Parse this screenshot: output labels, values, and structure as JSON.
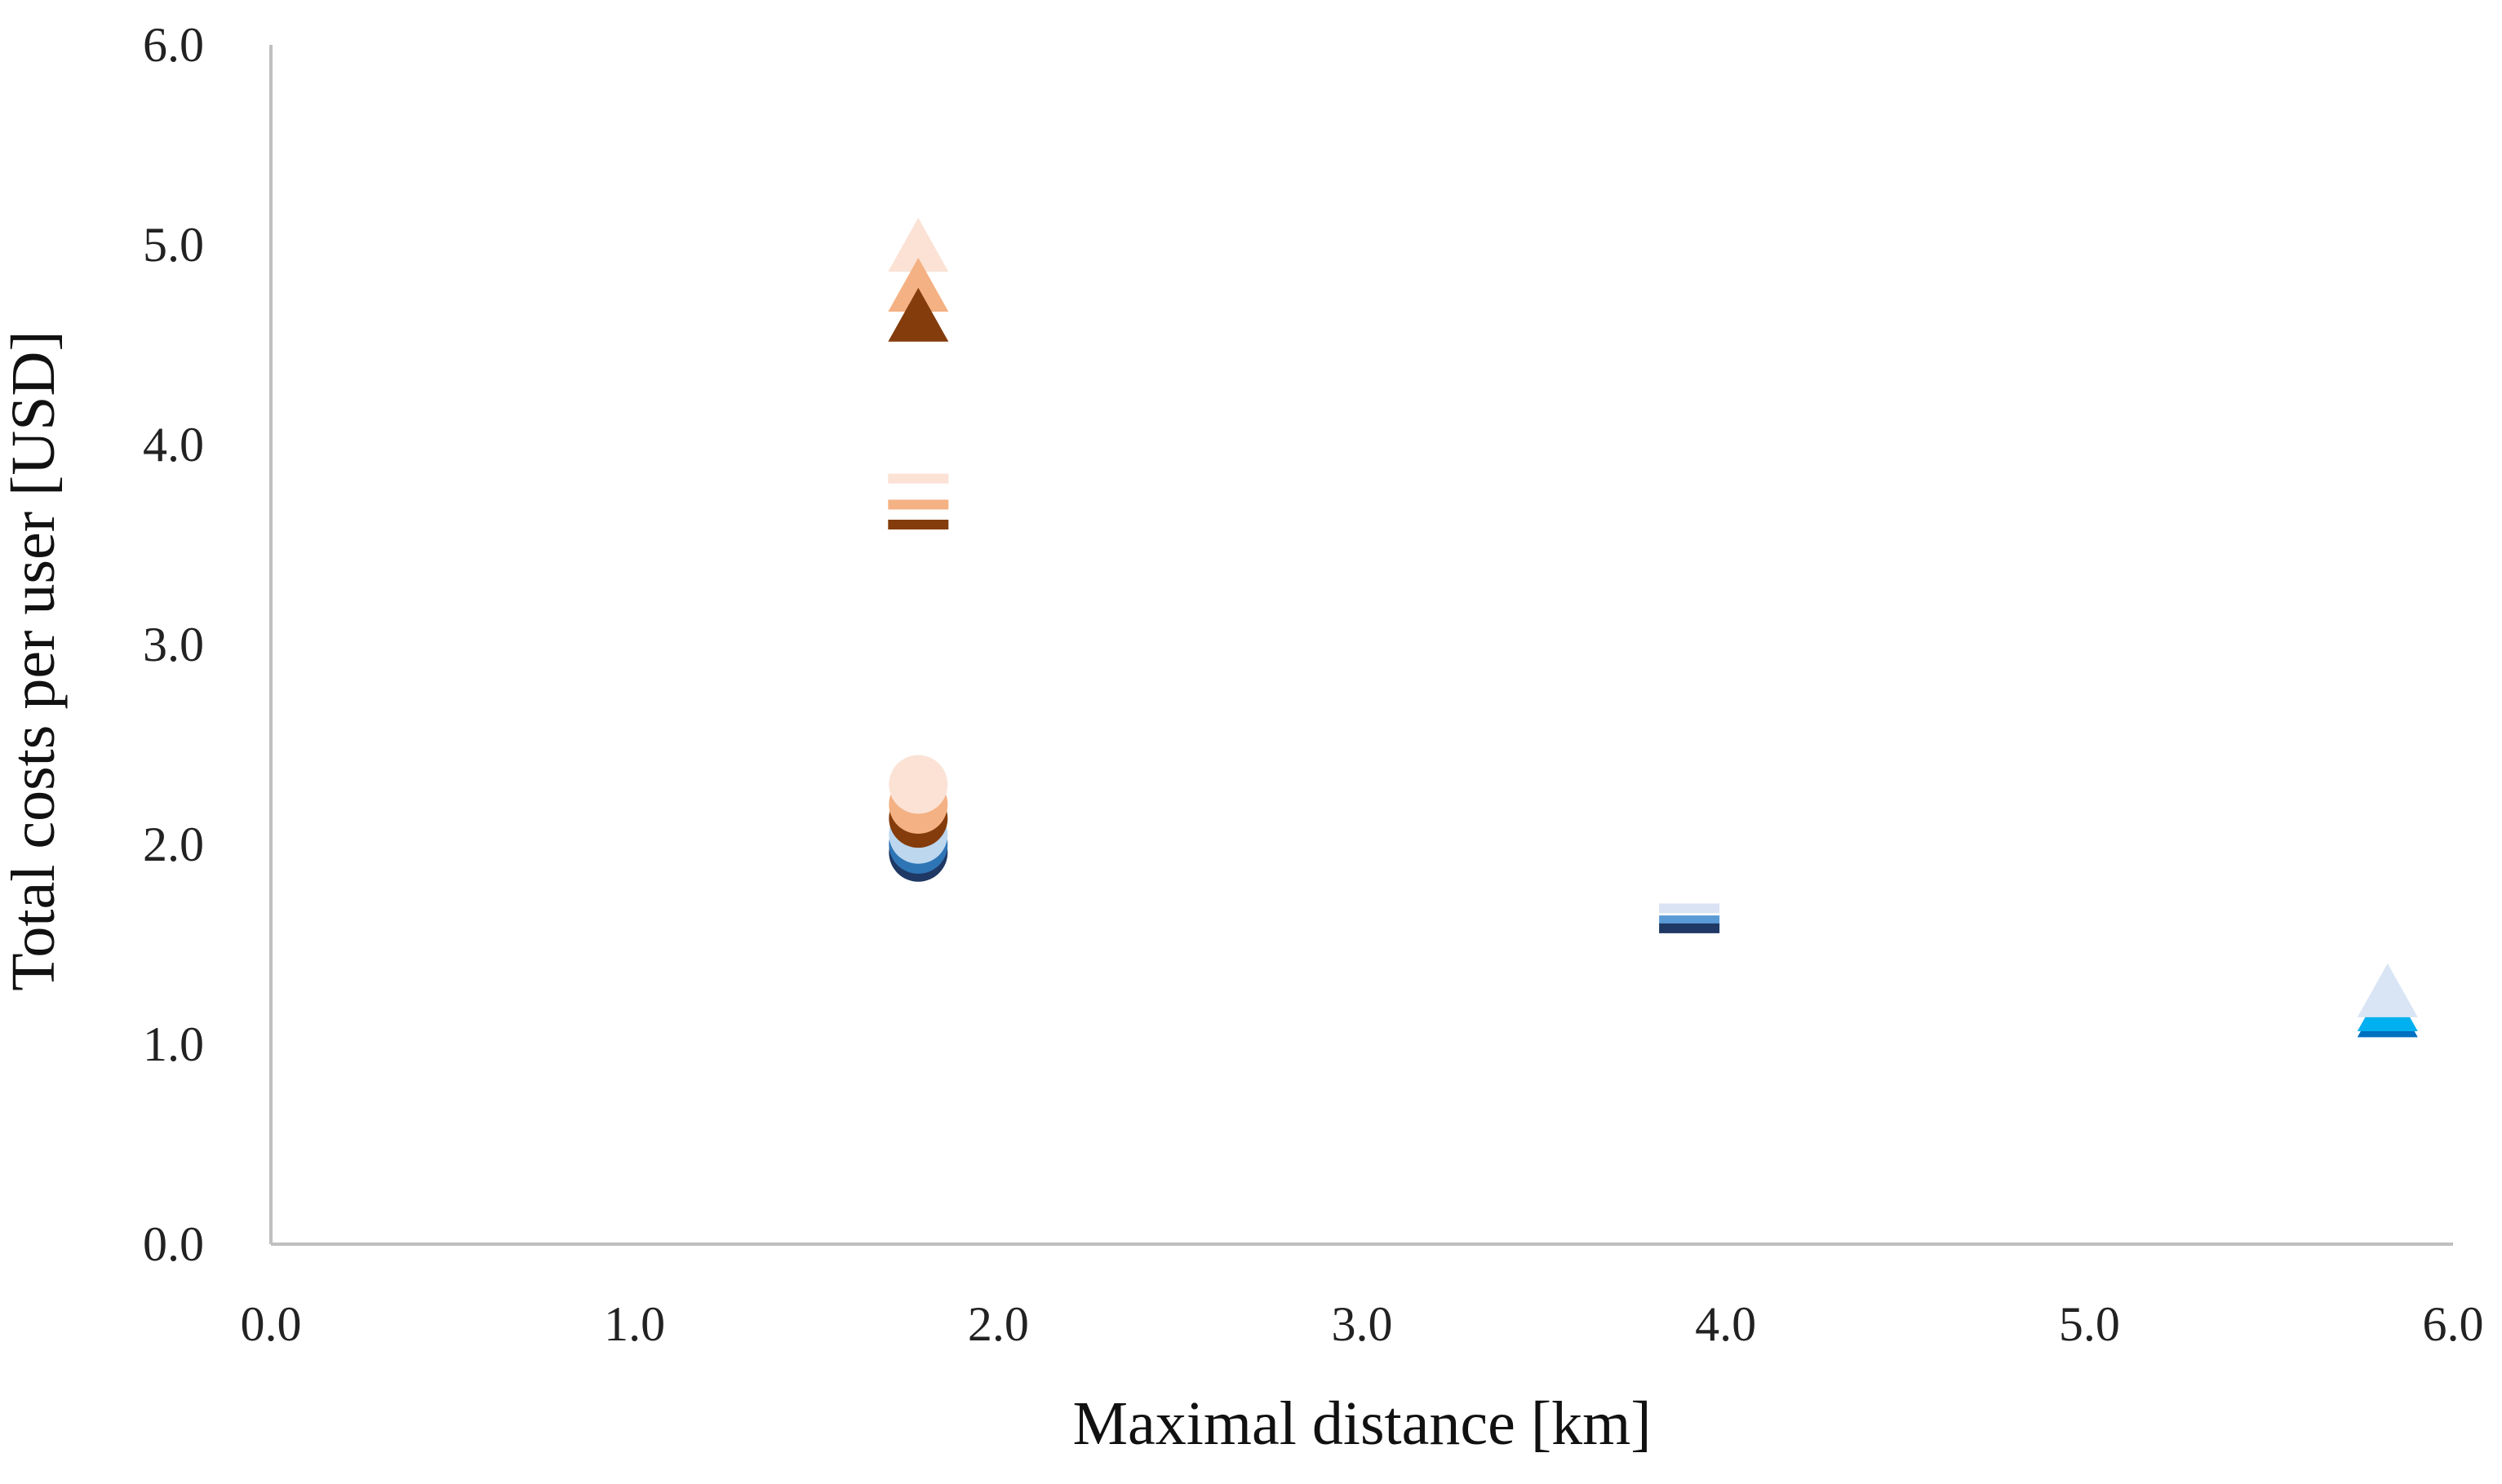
{
  "chart_data": {
    "type": "scatter",
    "title": "",
    "xlabel": "Maximal distance [km]",
    "ylabel": "Total costs per user [USD]",
    "xlim": [
      0,
      6
    ],
    "ylim": [
      0,
      6
    ],
    "xticks": [
      "0.0",
      "1.0",
      "2.0",
      "3.0",
      "4.0",
      "5.0",
      "6.0"
    ],
    "yticks": [
      "0.0",
      "1.0",
      "2.0",
      "3.0",
      "4.0",
      "5.0",
      "6.0"
    ],
    "grid": false,
    "legend": "none",
    "series": [
      {
        "marker": "triangle",
        "color": "#fbe2d5",
        "points": [
          {
            "x": 1.78,
            "y": 5.0
          }
        ]
      },
      {
        "marker": "triangle",
        "color": "#f4b183",
        "points": [
          {
            "x": 1.78,
            "y": 4.8
          }
        ]
      },
      {
        "marker": "triangle",
        "color": "#843c0c",
        "points": [
          {
            "x": 1.78,
            "y": 4.65
          }
        ]
      },
      {
        "marker": "dash",
        "color": "#fbe2d5",
        "points": [
          {
            "x": 1.78,
            "y": 3.83
          }
        ]
      },
      {
        "marker": "dash",
        "color": "#f4b183",
        "points": [
          {
            "x": 1.78,
            "y": 3.7
          }
        ]
      },
      {
        "marker": "dash",
        "color": "#843c0c",
        "points": [
          {
            "x": 1.78,
            "y": 3.6
          }
        ]
      },
      {
        "marker": "circle",
        "color": "#1f3864",
        "points": [
          {
            "x": 1.78,
            "y": 1.96
          }
        ]
      },
      {
        "marker": "circle",
        "color": "#2e75b6",
        "points": [
          {
            "x": 1.78,
            "y": 2.0
          }
        ]
      },
      {
        "marker": "circle",
        "color": "#bdd7ee",
        "points": [
          {
            "x": 1.78,
            "y": 2.05
          }
        ]
      },
      {
        "marker": "circle",
        "color": "#843c0c",
        "points": [
          {
            "x": 1.78,
            "y": 2.13
          }
        ]
      },
      {
        "marker": "circle",
        "color": "#f4b183",
        "points": [
          {
            "x": 1.78,
            "y": 2.2
          }
        ]
      },
      {
        "marker": "circle",
        "color": "#fbe2d5",
        "points": [
          {
            "x": 1.78,
            "y": 2.3
          }
        ]
      },
      {
        "marker": "dash",
        "color": "#dae3f3",
        "points": [
          {
            "x": 3.9,
            "y": 1.68
          }
        ]
      },
      {
        "marker": "dash",
        "color": "#5b9bd5",
        "points": [
          {
            "x": 3.9,
            "y": 1.62
          }
        ]
      },
      {
        "marker": "dash",
        "color": "#1f3864",
        "points": [
          {
            "x": 3.9,
            "y": 1.58
          }
        ]
      },
      {
        "marker": "triangle",
        "color": "#0070c0",
        "points": [
          {
            "x": 5.82,
            "y": 1.17
          }
        ]
      },
      {
        "marker": "triangle",
        "color": "#00b0f0",
        "points": [
          {
            "x": 5.82,
            "y": 1.2
          }
        ]
      },
      {
        "marker": "triangle",
        "color": "#d9e5f5",
        "points": [
          {
            "x": 5.82,
            "y": 1.27
          }
        ]
      }
    ]
  }
}
